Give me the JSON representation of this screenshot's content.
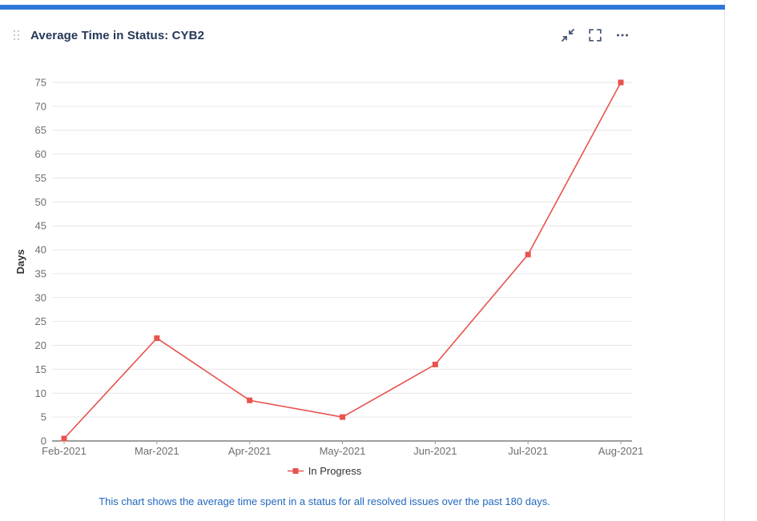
{
  "widget": {
    "title": "Average Time in Status: CYB2",
    "accent_color": "#2e76d9",
    "icon_color": "#42526e",
    "actions": {
      "minimize_label": "minimize",
      "fullscreen_label": "fullscreen",
      "more_label": "more options"
    }
  },
  "chart_data": {
    "type": "line",
    "categories": [
      "Feb-2021",
      "Mar-2021",
      "Apr-2021",
      "May-2021",
      "Jun-2021",
      "Jul-2021",
      "Aug-2021"
    ],
    "series": [
      {
        "name": "In Progress",
        "color": "#e8534e",
        "values": [
          0.5,
          21.5,
          8.5,
          5,
          16,
          39,
          75
        ]
      }
    ],
    "title": "",
    "xlabel": "",
    "ylabel": "Days",
    "ylim": [
      0,
      75
    ],
    "ytick_step": 5,
    "grid": true,
    "grid_color": "#e6e6e6",
    "axis_color": "#3d3d3d",
    "tick_text_color": "#6e6e6e",
    "ylabel_color": "#333333",
    "legend_position": "bottom",
    "marker": "square"
  },
  "footer": {
    "text": "This chart shows the average time spent in a status for all resolved issues over the past 180 days.",
    "color": "#2368bd"
  }
}
